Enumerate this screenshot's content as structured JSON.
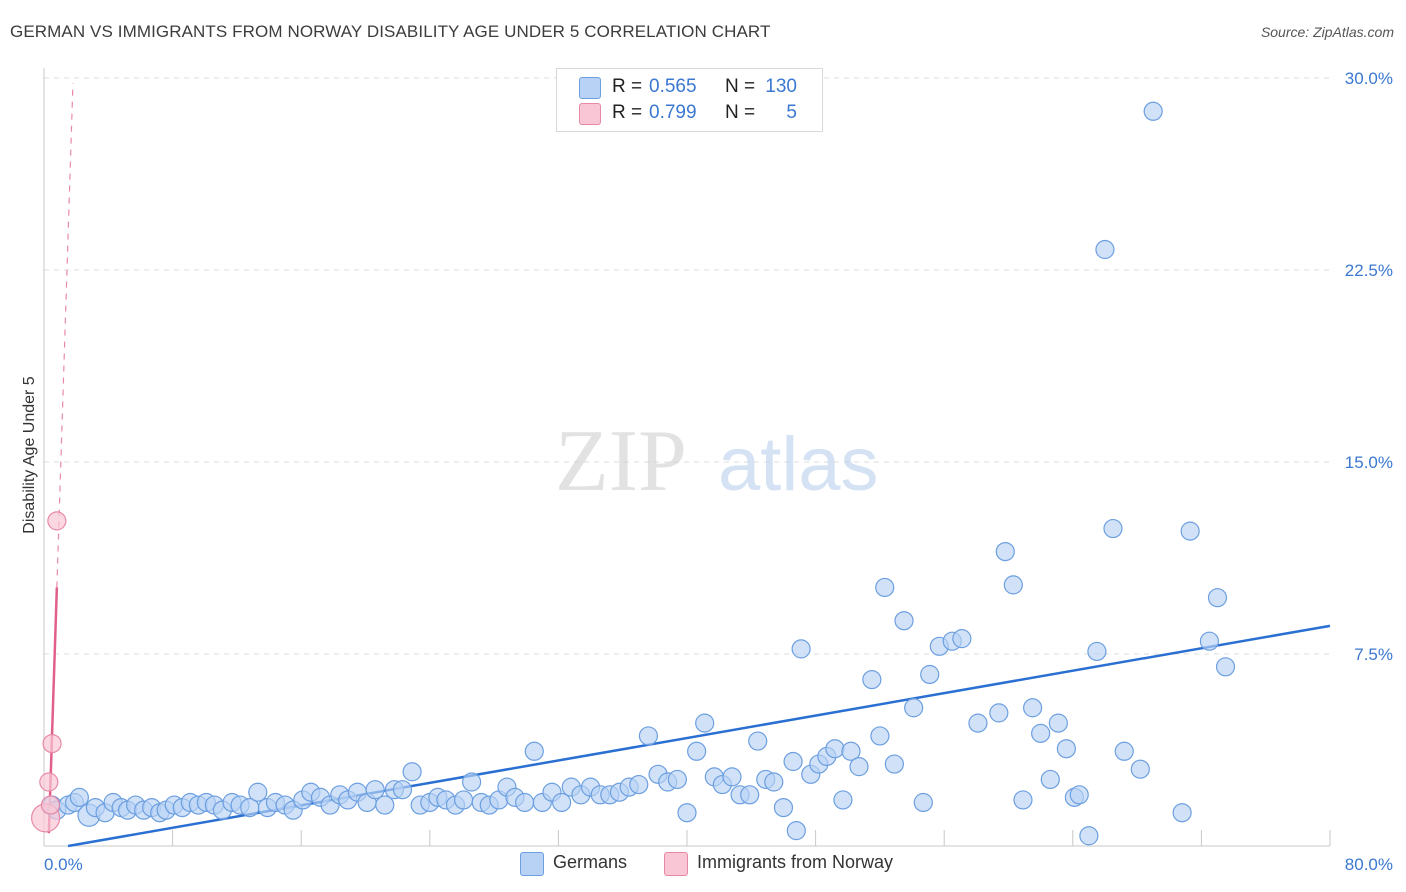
{
  "title": "GERMAN VS IMMIGRANTS FROM NORWAY DISABILITY AGE UNDER 5 CORRELATION CHART",
  "source": "Source: ZipAtlas.com",
  "watermark": {
    "zip": "ZIP",
    "atlas": "atlas"
  },
  "colors": {
    "blue_fill": "#b8d2f5",
    "blue_stroke": "#6c9fe0",
    "blue_line": "#2a6fd2",
    "pink_fill": "#f8c6d4",
    "pink_stroke": "#e88aa6",
    "pink_line": "#e0608a",
    "axis_text": "#3b78d0",
    "grid": "#dcdcdc"
  },
  "legend": {
    "rows": [
      {
        "r_label": "R =",
        "r_value": "0.565",
        "n_label": "N =",
        "n_value": "130"
      },
      {
        "r_label": "R =",
        "r_value": "0.799",
        "n_label": "N =",
        "n_value": "5"
      }
    ]
  },
  "bottom_legend": {
    "series1": "Germans",
    "series2": "Immigrants from Norway"
  },
  "chart_data": {
    "type": "scatter",
    "title": "GERMAN VS IMMIGRANTS FROM NORWAY DISABILITY AGE UNDER 5 CORRELATION CHART",
    "xlabel": "",
    "ylabel": "Disability Age Under 5",
    "xlim": [
      0,
      80
    ],
    "ylim": [
      0,
      30
    ],
    "x_tick_labels": [
      {
        "value": 0,
        "label": "0.0%"
      },
      {
        "value": 80,
        "label": "80.0%"
      }
    ],
    "y_tick_labels": [
      {
        "value": 7.5,
        "label": "7.5%"
      },
      {
        "value": 15,
        "label": "15.0%"
      },
      {
        "value": 22.5,
        "label": "22.5%"
      },
      {
        "value": 30,
        "label": "30.0%"
      }
    ],
    "series": [
      {
        "name": "Germans",
        "R": 0.565,
        "N": 130,
        "trend": {
          "x": [
            1.5,
            80
          ],
          "y": [
            0.0,
            8.6
          ]
        },
        "points": [
          [
            0.5,
            1.6
          ],
          [
            0.8,
            1.4
          ],
          [
            1.5,
            1.6
          ],
          [
            1.9,
            1.7
          ],
          [
            2.2,
            1.9
          ],
          [
            2.8,
            1.2
          ],
          [
            3.2,
            1.5
          ],
          [
            3.8,
            1.3
          ],
          [
            4.3,
            1.7
          ],
          [
            4.8,
            1.5
          ],
          [
            5.2,
            1.4
          ],
          [
            5.7,
            1.6
          ],
          [
            6.2,
            1.4
          ],
          [
            6.7,
            1.5
          ],
          [
            7.2,
            1.3
          ],
          [
            7.6,
            1.4
          ],
          [
            8.1,
            1.6
          ],
          [
            8.6,
            1.5
          ],
          [
            9.1,
            1.7
          ],
          [
            9.6,
            1.6
          ],
          [
            10.1,
            1.7
          ],
          [
            10.6,
            1.6
          ],
          [
            11.1,
            1.4
          ],
          [
            11.7,
            1.7
          ],
          [
            12.2,
            1.6
          ],
          [
            12.8,
            1.5
          ],
          [
            13.3,
            2.1
          ],
          [
            13.9,
            1.5
          ],
          [
            14.4,
            1.7
          ],
          [
            15.0,
            1.6
          ],
          [
            15.5,
            1.4
          ],
          [
            16.1,
            1.8
          ],
          [
            16.6,
            2.1
          ],
          [
            17.2,
            1.9
          ],
          [
            17.8,
            1.6
          ],
          [
            18.4,
            2.0
          ],
          [
            18.9,
            1.8
          ],
          [
            19.5,
            2.1
          ],
          [
            20.1,
            1.7
          ],
          [
            20.6,
            2.2
          ],
          [
            21.2,
            1.6
          ],
          [
            21.8,
            2.2
          ],
          [
            22.3,
            2.2
          ],
          [
            22.9,
            2.9
          ],
          [
            23.4,
            1.6
          ],
          [
            24.0,
            1.7
          ],
          [
            24.5,
            1.9
          ],
          [
            25.0,
            1.8
          ],
          [
            25.6,
            1.6
          ],
          [
            26.1,
            1.8
          ],
          [
            26.6,
            2.5
          ],
          [
            27.2,
            1.7
          ],
          [
            27.7,
            1.6
          ],
          [
            28.3,
            1.8
          ],
          [
            28.8,
            2.3
          ],
          [
            29.3,
            1.9
          ],
          [
            29.9,
            1.7
          ],
          [
            30.5,
            3.7
          ],
          [
            31.0,
            1.7
          ],
          [
            31.6,
            2.1
          ],
          [
            32.2,
            1.7
          ],
          [
            32.8,
            2.3
          ],
          [
            33.4,
            2.0
          ],
          [
            34.0,
            2.3
          ],
          [
            34.6,
            2.0
          ],
          [
            35.2,
            2.0
          ],
          [
            35.8,
            2.1
          ],
          [
            36.4,
            2.3
          ],
          [
            37.0,
            2.4
          ],
          [
            37.6,
            4.3
          ],
          [
            38.2,
            2.8
          ],
          [
            38.8,
            2.5
          ],
          [
            39.4,
            2.6
          ],
          [
            40.0,
            1.3
          ],
          [
            40.6,
            3.7
          ],
          [
            41.1,
            4.8
          ],
          [
            41.7,
            2.7
          ],
          [
            42.2,
            2.4
          ],
          [
            42.8,
            2.7
          ],
          [
            43.3,
            2.0
          ],
          [
            43.9,
            2.0
          ],
          [
            44.4,
            4.1
          ],
          [
            44.9,
            2.6
          ],
          [
            45.4,
            2.5
          ],
          [
            46.0,
            1.5
          ],
          [
            46.6,
            3.3
          ],
          [
            47.1,
            7.7
          ],
          [
            47.7,
            2.8
          ],
          [
            48.2,
            3.2
          ],
          [
            48.7,
            3.5
          ],
          [
            49.2,
            3.8
          ],
          [
            49.7,
            1.8
          ],
          [
            50.2,
            3.7
          ],
          [
            50.7,
            3.1
          ],
          [
            51.5,
            6.5
          ],
          [
            52.0,
            4.3
          ],
          [
            52.3,
            10.1
          ],
          [
            52.9,
            3.2
          ],
          [
            53.5,
            8.8
          ],
          [
            54.1,
            5.4
          ],
          [
            54.7,
            1.7
          ],
          [
            55.1,
            6.7
          ],
          [
            55.7,
            7.8
          ],
          [
            56.5,
            8.0
          ],
          [
            57.1,
            8.1
          ],
          [
            58.1,
            4.8
          ],
          [
            59.4,
            5.2
          ],
          [
            59.8,
            11.5
          ],
          [
            60.3,
            10.2
          ],
          [
            60.9,
            1.8
          ],
          [
            61.5,
            5.4
          ],
          [
            62.0,
            4.4
          ],
          [
            62.6,
            2.6
          ],
          [
            63.1,
            4.8
          ],
          [
            63.6,
            3.8
          ],
          [
            64.1,
            1.9
          ],
          [
            64.4,
            2.0
          ],
          [
            65.0,
            0.4
          ],
          [
            65.5,
            7.6
          ],
          [
            66.5,
            12.4
          ],
          [
            67.2,
            3.7
          ],
          [
            68.2,
            3.0
          ],
          [
            69.0,
            28.7
          ],
          [
            70.8,
            1.3
          ],
          [
            71.3,
            12.3
          ],
          [
            72.5,
            8.0
          ],
          [
            73.0,
            9.7
          ],
          [
            73.5,
            7.0
          ],
          [
            66.0,
            23.3
          ],
          [
            46.8,
            0.6
          ]
        ]
      },
      {
        "name": "Immigrants from Norway",
        "R": 0.799,
        "N": 5,
        "trend_solid": {
          "x": [
            0.3,
            0.8
          ],
          "y": [
            0.5,
            10.1
          ]
        },
        "trend_dashed": {
          "x": [
            0.8,
            1.8
          ],
          "y": [
            10.1,
            29.8
          ]
        },
        "points": [
          [
            0.1,
            1.1
          ],
          [
            0.3,
            2.5
          ],
          [
            0.4,
            1.6
          ],
          [
            0.5,
            4.0
          ],
          [
            0.8,
            12.7
          ]
        ]
      }
    ]
  }
}
